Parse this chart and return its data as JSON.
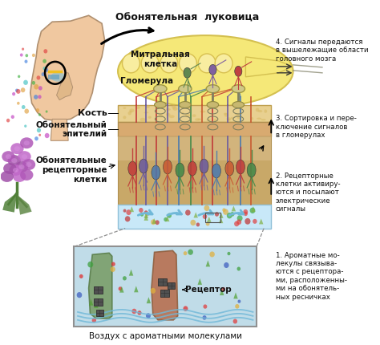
{
  "bg_color": "#ffffff",
  "labels": {
    "olfactory_bulb": "Обонятельная  луковица",
    "mitral_cell": "Митральная\nклетка",
    "glomerula": "Гломерула",
    "bone": "Кость",
    "olfactory_epithelium": "Обонятельный\nэпителий",
    "olfactory_receptor_cells": "Обонятельные\nрецепторные\nклетки",
    "receptor": "Рецептор",
    "air": "Воздух с ароматными молекулами",
    "step1": "1. Ароматные мо-\nлекулы связыва-\nются с рецептора-\nми, расположенны-\nми на обонятель-\nных ресничках",
    "step2": "2. Рецепторные\nклетки активиру-\nются и посылают\nэлектрические\nсигналы",
    "step3": "3. Сортировка и пере-\nключение сигналов\nв гломерулах",
    "step4": "4. Сигналы передаются\nв вышележащие области\nголовного мозга"
  },
  "colors": {
    "bulb_fill": "#f5e878",
    "bulb_edge": "#d4c050",
    "bone_fill": "#e8d090",
    "epithelium_fill": "#e0c080",
    "receptor_bg": "#d8c090",
    "cilia_fill": "#d0e8f8",
    "inset_bg": "#c0dce8",
    "inset_border": "#909090",
    "head_skin": "#f0c8a0",
    "head_outline": "#b09070",
    "text_color": "#111111"
  },
  "figure_size": [
    4.74,
    4.3
  ],
  "dpi": 100
}
